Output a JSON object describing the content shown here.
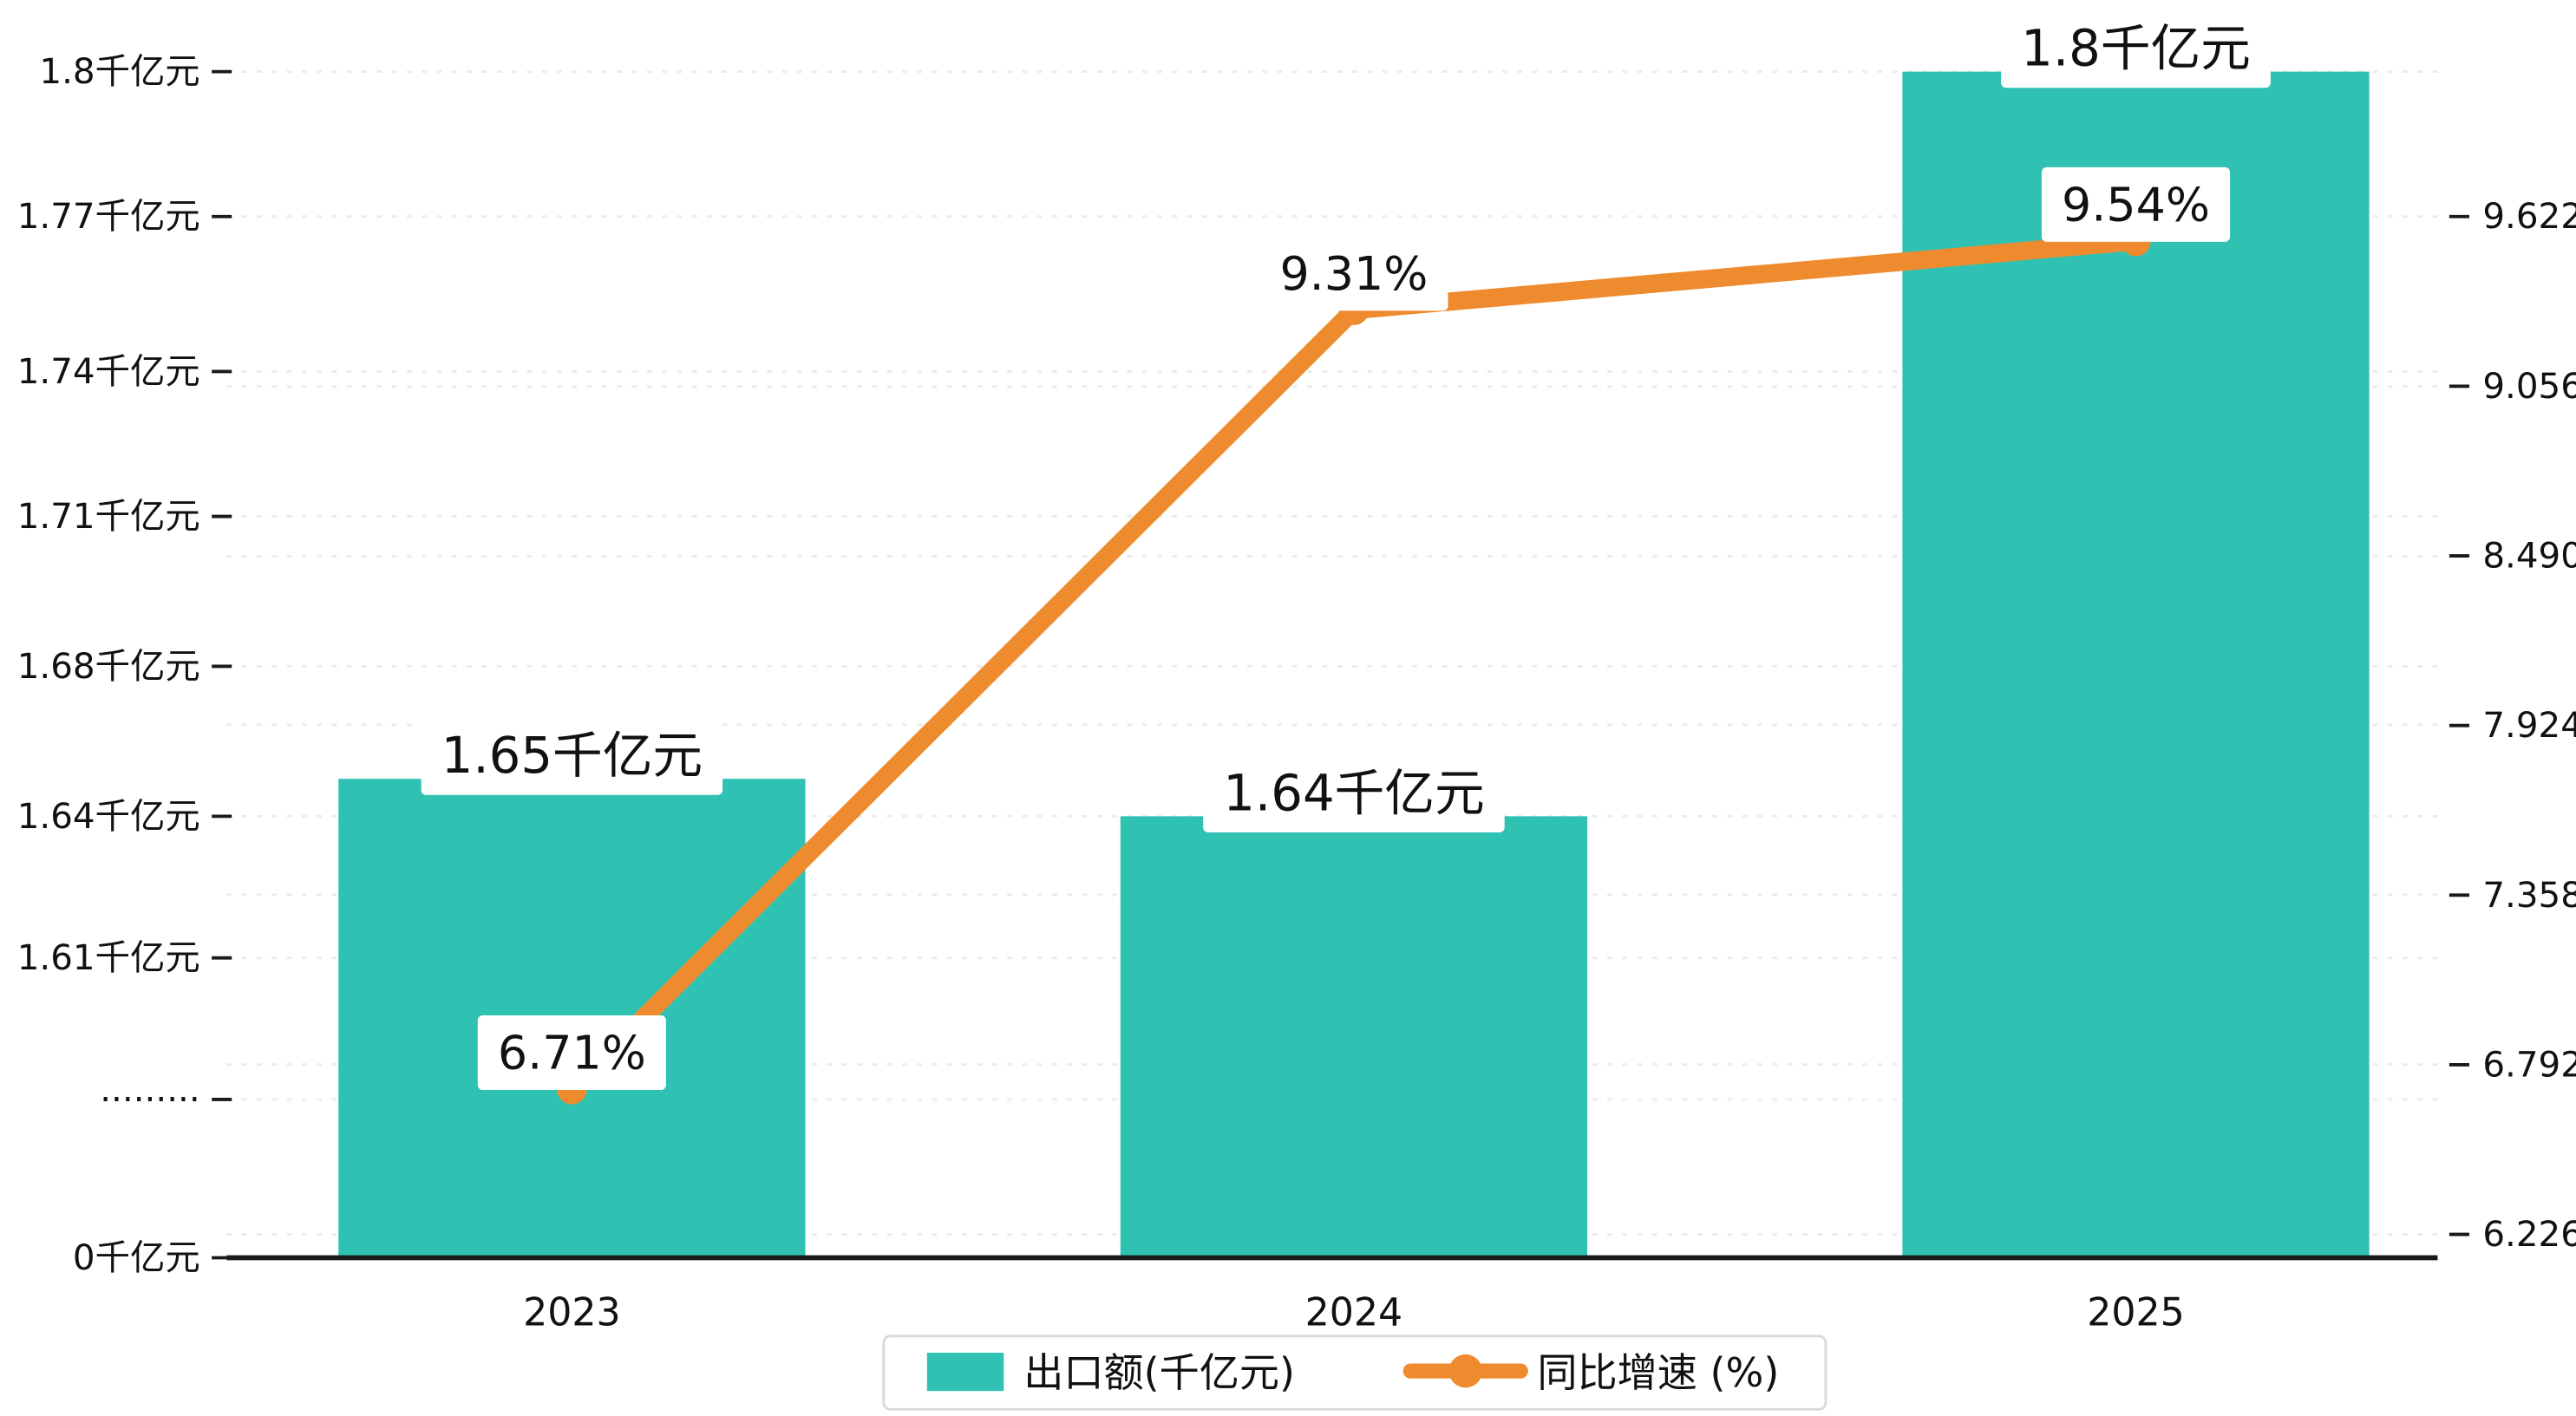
{
  "chart_data": {
    "type": "bar",
    "title": "",
    "categories": [
      "2023",
      "2024",
      "2025"
    ],
    "series": [
      {
        "name": "出口额(千亿元)",
        "chart_type": "bar",
        "axis": "left",
        "color": "#2fc2b3",
        "values": [
          1.65,
          1.64,
          1.8
        ],
        "data_labels": [
          "1.65千亿元",
          "1.64千亿元",
          "1.8千亿元"
        ]
      },
      {
        "name": "同比增速 (%)",
        "chart_type": "line",
        "axis": "right",
        "color": "#ee8b2e",
        "values": [
          6.71,
          9.31,
          9.54
        ],
        "data_labels": [
          "6.71%",
          "9.31%",
          "9.54%"
        ]
      }
    ],
    "left_axis": {
      "tick_labels": [
        "1.8千亿元",
        "1.77千亿元",
        "1.74千亿元",
        "1.71千亿元",
        "1.68千亿元",
        "1.64千亿元",
        "1.61千亿元",
        "·········",
        "0千亿元"
      ],
      "tick_values": [
        1.8,
        1.77,
        1.74,
        1.71,
        1.68,
        1.64,
        1.61,
        null,
        0
      ],
      "axis_break": true
    },
    "right_axis": {
      "ticks": [
        9.622,
        9.056,
        8.49,
        7.924,
        7.358,
        6.792,
        6.226
      ]
    },
    "legend": {
      "position": "bottom",
      "items": [
        {
          "label": "出口额(千亿元)",
          "marker": "square",
          "color": "#2fc2b3"
        },
        {
          "label": "同比增速 (%)",
          "marker": "line-dot",
          "color": "#ee8b2e"
        }
      ]
    },
    "grid": true,
    "colors": {
      "bar": "#2fc2b3",
      "line": "#ee8b2e",
      "text": "#111111",
      "axis": "#1a1a1a",
      "grid": "#ececec",
      "label_bg": "#ffffff",
      "legend_border": "#d9d9d9"
    }
  }
}
